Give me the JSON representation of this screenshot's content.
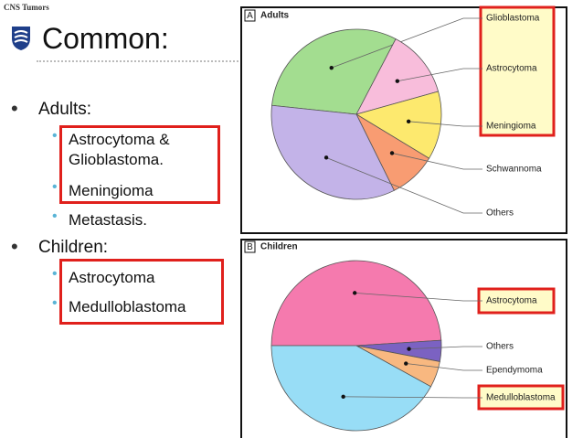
{
  "header": {
    "tag": "CNS Tumors",
    "title": "Common:"
  },
  "bullets": [
    {
      "text": "Adults:",
      "items": [
        "Astrocytoma & Glioblastoma.",
        "Meningioma",
        "Metastasis."
      ]
    },
    {
      "text": "Children:",
      "items": [
        "Astrocytoma",
        "Medulloblastoma"
      ]
    }
  ],
  "chart_data": [
    {
      "type": "pie",
      "panel": "A",
      "title": "Adults",
      "categories": [
        "Glioblastoma",
        "Astrocytoma",
        "Meningioma",
        "Schwannoma",
        "Others"
      ],
      "values": [
        31,
        13,
        13,
        9,
        34
      ],
      "colors": [
        "#a3dd90",
        "#f8bddb",
        "#fde96e",
        "#f89c72",
        "#c3b3e8"
      ]
    },
    {
      "type": "pie",
      "panel": "B",
      "title": "Children",
      "categories": [
        "Astrocytoma",
        "Others",
        "Ependymoma",
        "Medulloblastoma"
      ],
      "values": [
        49,
        4,
        5,
        42
      ],
      "colors": [
        "#f57aae",
        "#7b62c2",
        "#f8b880",
        "#98ddf6"
      ]
    }
  ]
}
